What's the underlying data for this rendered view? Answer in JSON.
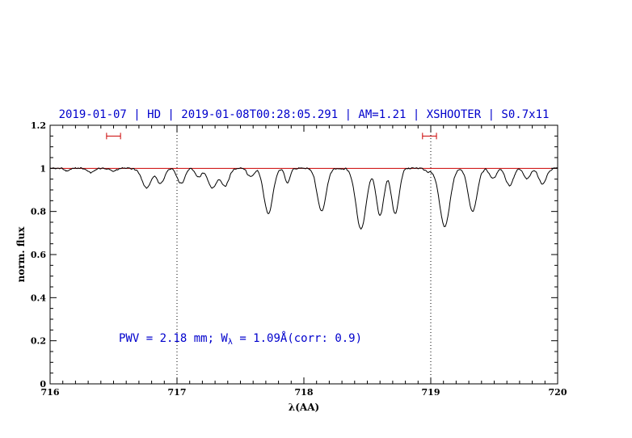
{
  "chart_data": {
    "type": "line",
    "title": "2019-01-07 | HD | 2019-01-08T00:28:05.291 | AM=1.21 | XSHOOTER | S0.7x11",
    "title_color": "#0000cc",
    "xlabel": "λ(AA)",
    "ylabel": "norm. flux",
    "xlim": [
      716,
      720
    ],
    "ylim": [
      0,
      1.2
    ],
    "x_major_ticks": [
      716,
      717,
      718,
      719,
      720
    ],
    "x_tick_labels": [
      "716",
      "717",
      "718",
      "719",
      "720"
    ],
    "x_minor_step": 0.1,
    "y_major_ticks": [
      0,
      0.2,
      0.4,
      0.6,
      0.8,
      1,
      1.2
    ],
    "y_tick_labels": [
      "0",
      "0.2",
      "0.4",
      "0.6",
      "0.8",
      "1",
      "1.2"
    ],
    "y_minor_step": 0.05,
    "grid": false,
    "spectrum_color": "#000000",
    "continuum": {
      "y": 1.0,
      "color": "#cc0000"
    },
    "dotted_vlines": [
      717,
      719
    ],
    "vline_color": "#000000",
    "line_markers": [
      {
        "x": 716.5,
        "half_width": 0.055,
        "y": 1.15
      },
      {
        "x": 718.99,
        "half_width": 0.055,
        "y": 1.15
      }
    ],
    "marker_color": "#cc0000",
    "lines_format": [
      "center_AA",
      "depth_norm",
      "sigma_AA"
    ],
    "absorption_lines": [
      [
        716.13,
        0.012,
        0.02
      ],
      [
        716.32,
        0.02,
        0.025
      ],
      [
        716.5,
        0.012,
        0.03
      ],
      [
        716.76,
        0.09,
        0.035
      ],
      [
        716.87,
        0.07,
        0.03
      ],
      [
        717.03,
        0.07,
        0.03
      ],
      [
        717.17,
        0.04,
        0.025
      ],
      [
        717.28,
        0.09,
        0.035
      ],
      [
        717.38,
        0.08,
        0.03
      ],
      [
        717.58,
        0.04,
        0.025
      ],
      [
        717.72,
        0.21,
        0.035
      ],
      [
        717.87,
        0.07,
        0.02
      ],
      [
        718.14,
        0.2,
        0.035
      ],
      [
        718.45,
        0.28,
        0.04
      ],
      [
        718.6,
        0.22,
        0.03
      ],
      [
        718.72,
        0.21,
        0.03
      ],
      [
        718.99,
        0.015,
        0.03
      ],
      [
        719.11,
        0.27,
        0.04
      ],
      [
        719.33,
        0.2,
        0.035
      ],
      [
        719.49,
        0.05,
        0.025
      ],
      [
        719.62,
        0.08,
        0.03
      ],
      [
        719.76,
        0.05,
        0.025
      ],
      [
        719.88,
        0.07,
        0.03
      ]
    ],
    "annotation": {
      "prefix": "PWV = 2.18 mm; W",
      "subscript": "λ",
      "suffix": " = 1.09Å(corr: 0.9)",
      "color": "#0000cc"
    }
  }
}
